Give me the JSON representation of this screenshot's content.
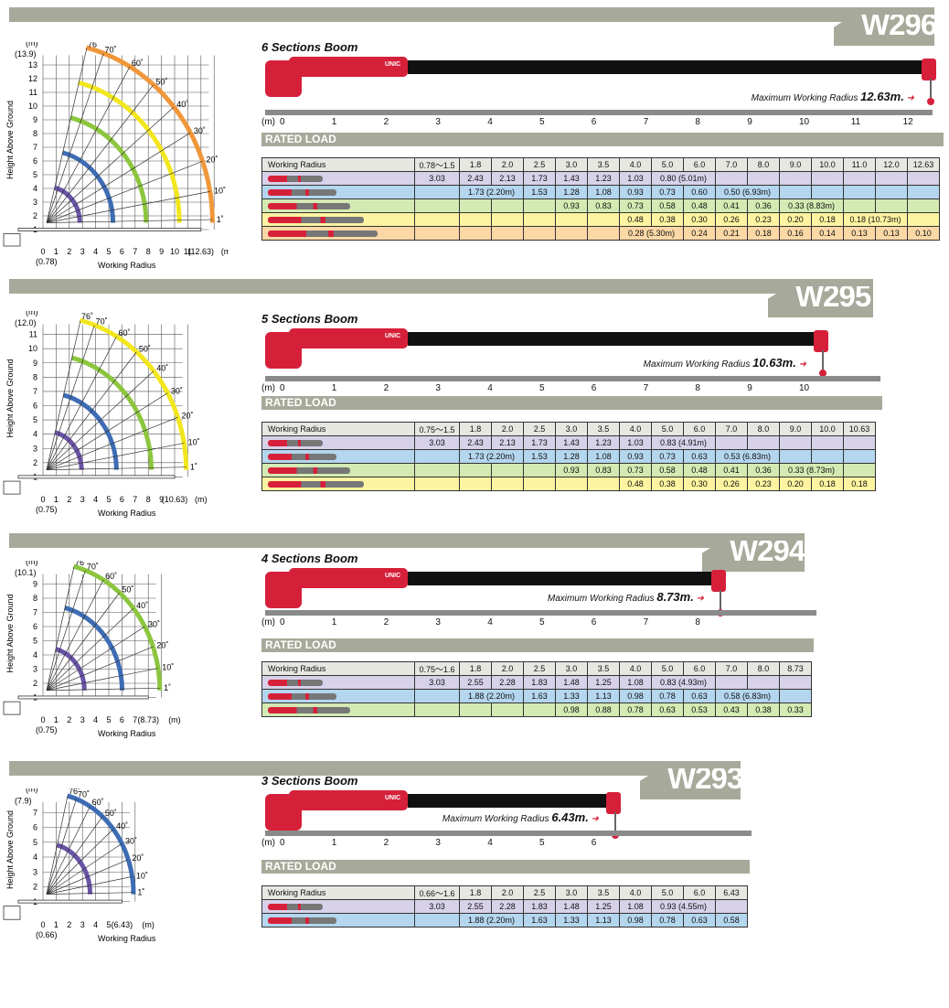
{
  "common": {
    "rated_load": "RATED LOAD",
    "working_radius": "Working Radius",
    "max_radius_label": "Maximum Working Radius",
    "diagram_y_label": "Height Above Ground",
    "diagram_x_label": "Working Radius",
    "unit_m": "(m)",
    "brand": "UNIC"
  },
  "models": [
    {
      "name": "W296",
      "title": "6 Sections Boom",
      "max_radius": "12.63m.",
      "ruler": [
        "0",
        "1",
        "2",
        "3",
        "4",
        "5",
        "6",
        "7",
        "8",
        "9",
        "10",
        "11",
        "12"
      ],
      "diagram": {
        "max_h": "(13.9)",
        "ymax": 13,
        "xlabels": [
          "0",
          "1",
          "2",
          "3",
          "4",
          "5",
          "6",
          "7",
          "8",
          "9",
          "10",
          "11",
          "(12.63)"
        ],
        "xzero": "(0.78)",
        "angles": [
          "76˚",
          "70˚",
          "60˚",
          "50˚",
          "40˚",
          "30˚",
          "20˚",
          "10˚",
          "1˚"
        ]
      },
      "table": {
        "header": [
          "0.78～1.5",
          "1.8",
          "2.0",
          "2.5",
          "3.0",
          "3.5",
          "4.0",
          "5.0",
          "6.0",
          "7.0",
          "8.0",
          "9.0",
          "10.0",
          "11.0",
          "12.0",
          "12.63"
        ],
        "rows": [
          {
            "color": "#d7d1ea",
            "cells": [
              "3.03",
              "2.43",
              "2.13",
              "1.73",
              "1.43",
              "1.23",
              "1.03",
              "0.80 (5.01m)",
              "",
              "",
              "",
              "",
              "",
              "",
              "",
              ""
            ]
          },
          {
            "color": "#b4d6ef",
            "cells": [
              "",
              "1.73 (2.20m)",
              "",
              "1.53",
              "1.28",
              "1.08",
              "0.93",
              "0.73",
              "0.60",
              "0.50 (6.93m)",
              "",
              "",
              "",
              "",
              "",
              ""
            ]
          },
          {
            "color": "#d3eab3",
            "cells": [
              "",
              "",
              "",
              "",
              "0.93",
              "0.83",
              "0.73",
              "0.58",
              "0.48",
              "0.41",
              "0.36",
              "0.33 (8.83m)",
              "",
              "",
              "",
              ""
            ]
          },
          {
            "color": "#fdf3a0",
            "cells": [
              "",
              "",
              "",
              "",
              "",
              "",
              "0.48",
              "0.38",
              "0.30",
              "0.26",
              "0.23",
              "0.20",
              "0.18",
              "0.18 (10.73m)",
              "",
              ""
            ]
          },
          {
            "color": "#fbd8a6",
            "cells": [
              "",
              "",
              "",
              "",
              "",
              "",
              "0.28 (5.30m)",
              "",
              "0.24",
              "0.21",
              "0.18",
              "0.16",
              "0.14",
              "0.13",
              "0.13",
              "0.10"
            ]
          }
        ]
      }
    },
    {
      "name": "W295",
      "title": "5 Sections Boom",
      "max_radius": "10.63m.",
      "ruler": [
        "0",
        "1",
        "2",
        "3",
        "4",
        "5",
        "6",
        "7",
        "8",
        "9",
        "10"
      ],
      "diagram": {
        "max_h": "(12.0)",
        "ymax": 11,
        "xlabels": [
          "0",
          "1",
          "2",
          "3",
          "4",
          "5",
          "6",
          "7",
          "8",
          "9",
          "(10.63)"
        ],
        "xzero": "(0.75)",
        "angles": [
          "76˚",
          "70˚",
          "60˚",
          "50˚",
          "40˚",
          "30˚",
          "20˚",
          "10˚",
          "1˚"
        ]
      },
      "table": {
        "header": [
          "0.75～1.5",
          "1.8",
          "2.0",
          "2.5",
          "3.0",
          "3.5",
          "4.0",
          "5.0",
          "6.0",
          "7.0",
          "8.0",
          "9.0",
          "10.0",
          "10.63"
        ],
        "rows": [
          {
            "color": "#d7d1ea",
            "cells": [
              "3.03",
              "2.43",
              "2.13",
              "1.73",
              "1.43",
              "1.23",
              "1.03",
              "0.83 (4.91m)",
              "",
              "",
              "",
              "",
              "",
              ""
            ]
          },
          {
            "color": "#b4d6ef",
            "cells": [
              "",
              "1.73 (2.20m)",
              "",
              "1.53",
              "1.28",
              "1.08",
              "0.93",
              "0.73",
              "0.63",
              "0.53 (6.83m)",
              "",
              "",
              "",
              ""
            ]
          },
          {
            "color": "#d3eab3",
            "cells": [
              "",
              "",
              "",
              "",
              "0.93",
              "0.83",
              "0.73",
              "0.58",
              "0.48",
              "0.41",
              "0.36",
              "0.33 (8.73m)",
              "",
              ""
            ]
          },
          {
            "color": "#fdf3a0",
            "cells": [
              "",
              "",
              "",
              "",
              "",
              "",
              "0.48",
              "0.38",
              "0.30",
              "0.26",
              "0.23",
              "0.20",
              "0.18",
              "0.18"
            ]
          }
        ]
      }
    },
    {
      "name": "W294",
      "title": "4 Sections Boom",
      "max_radius": "8.73m.",
      "ruler": [
        "0",
        "1",
        "2",
        "3",
        "4",
        "5",
        "6",
        "7",
        "8"
      ],
      "diagram": {
        "max_h": "(10.1)",
        "ymax": 9,
        "xlabels": [
          "0",
          "1",
          "2",
          "3",
          "4",
          "5",
          "6",
          "7",
          "(8.73)"
        ],
        "xzero": "(0.75)",
        "angles": [
          "76˚",
          "70˚",
          "60˚",
          "50˚",
          "40˚",
          "30˚",
          "20˚",
          "10˚",
          "1˚"
        ]
      },
      "table": {
        "header": [
          "0.75～1.6",
          "1.8",
          "2.0",
          "2.5",
          "3.0",
          "3.5",
          "4.0",
          "5.0",
          "6.0",
          "7.0",
          "8.0",
          "8.73"
        ],
        "rows": [
          {
            "color": "#d7d1ea",
            "cells": [
              "3.03",
              "2.55",
              "2.28",
              "1.83",
              "1.48",
              "1.25",
              "1.08",
              "0.83 (4.93m)",
              "",
              "",
              "",
              ""
            ]
          },
          {
            "color": "#b4d6ef",
            "cells": [
              "",
              "1.88 (2.20m)",
              "",
              "1.63",
              "1.33",
              "1.13",
              "0.98",
              "0.78",
              "0.63",
              "0.58 (6.83m)",
              "",
              ""
            ]
          },
          {
            "color": "#d3eab3",
            "cells": [
              "",
              "",
              "",
              "",
              "0.98",
              "0.88",
              "0.78",
              "0.63",
              "0.53",
              "0.43",
              "0.38",
              "0.33"
            ]
          }
        ]
      }
    },
    {
      "name": "W293",
      "title": "3 Sections Boom",
      "max_radius": "6.43m.",
      "ruler": [
        "0",
        "1",
        "2",
        "3",
        "4",
        "5",
        "6"
      ],
      "diagram": {
        "max_h": "(7.9)",
        "ymax": 7,
        "xlabels": [
          "0",
          "1",
          "2",
          "3",
          "4",
          "5",
          "(6.43)"
        ],
        "xzero": "(0.66)",
        "angles": [
          "76˚",
          "70˚",
          "60˚",
          "50˚",
          "40˚",
          "30˚",
          "20˚",
          "10˚",
          "1˚"
        ]
      },
      "table": {
        "header": [
          "0.66～1.6",
          "1.8",
          "2.0",
          "2.5",
          "3.0",
          "3.5",
          "4.0",
          "5.0",
          "6.0",
          "6.43"
        ],
        "rows": [
          {
            "color": "#d7d1ea",
            "cells": [
              "3.03",
              "2.55",
              "2.28",
              "1.83",
              "1.48",
              "1.25",
              "1.08",
              "0.93 (4.55m)",
              "",
              ""
            ]
          },
          {
            "color": "#b4d6ef",
            "cells": [
              "",
              "1.88 (2.20m)",
              "",
              "1.63",
              "1.33",
              "1.13",
              "0.98",
              "0.78",
              "0.63",
              "0.58"
            ]
          }
        ]
      }
    }
  ]
}
